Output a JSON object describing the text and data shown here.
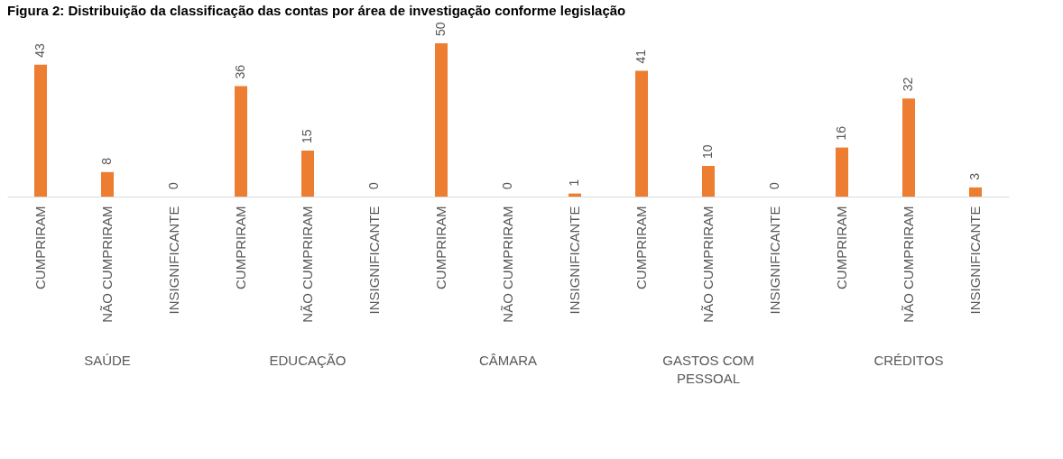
{
  "chart_data": {
    "type": "bar",
    "title": "Figura 2: Distribuição da classificação das contas por área de investigação conforme legislação",
    "categories": [
      "CUMPRIRAM",
      "NÃO CUMPRIRAM",
      "INSIGNIFICANTE",
      "CUMPRIRAM",
      "NÃO CUMPRIRAM",
      "INSIGNIFICANTE",
      "CUMPRIRAM",
      "NÃO CUMPRIRAM",
      "INSIGNIFICANTE",
      "CUMPRIRAM",
      "NÃO CUMPRIRAM",
      "INSIGNIFICANTE",
      "CUMPRIRAM",
      "NÃO CUMPRIRAM",
      "INSIGNIFICANTE"
    ],
    "values": [
      43,
      8,
      0,
      36,
      15,
      0,
      50,
      0,
      1,
      41,
      10,
      0,
      16,
      32,
      3
    ],
    "color": "#ed7d31",
    "data_labels": true,
    "annotations": [
      "SAÚDE",
      "EDUCAÇÃO",
      "CÂMARA",
      "GASTOS COM PESSOAL",
      "CRÉDITOS"
    ],
    "grid": false
  }
}
